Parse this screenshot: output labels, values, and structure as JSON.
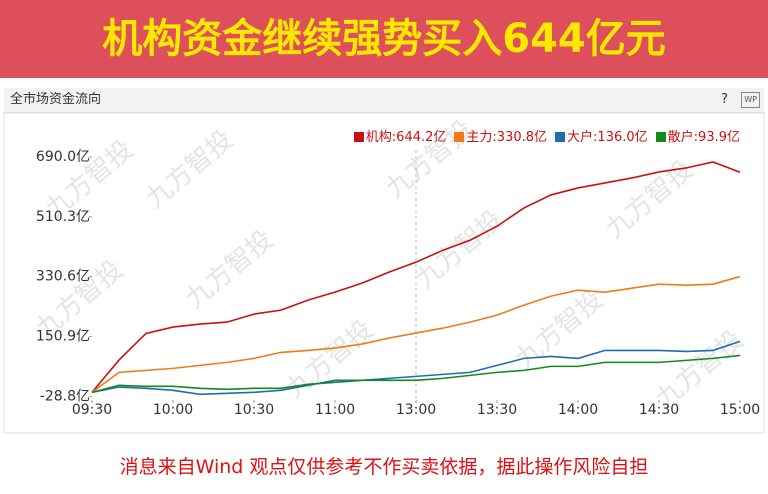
{
  "banner": {
    "title": "机构资金继续强势买入644亿元"
  },
  "panel": {
    "title": "全市场资金流向",
    "help": "?",
    "icon": "WP"
  },
  "watermark": "九方智投",
  "footer": "消息来自Wind 观点仅供参考不作买卖依据，据此操作风险自担",
  "chart_data": {
    "type": "line",
    "x": [
      0,
      10,
      20,
      30,
      40,
      50,
      60,
      70,
      80,
      90,
      100,
      110,
      120,
      130,
      140,
      150,
      160,
      170,
      180,
      190,
      200,
      210,
      220,
      230,
      240
    ],
    "xlim": [
      0,
      240
    ],
    "xticks": [
      {
        "value": 0,
        "label": "09:30"
      },
      {
        "value": 30,
        "label": "10:00"
      },
      {
        "value": 60,
        "label": "10:30"
      },
      {
        "value": 90,
        "label": "11:00"
      },
      {
        "value": 120,
        "label": "13:00"
      },
      {
        "value": 150,
        "label": "13:30"
      },
      {
        "value": 180,
        "label": "14:00"
      },
      {
        "value": 210,
        "label": "14:30"
      },
      {
        "value": 240,
        "label": "15:00"
      }
    ],
    "ylim": [
      -40,
      726
    ],
    "yticks": [
      {
        "value": 690,
        "label": "690.0亿"
      },
      {
        "value": 510.3,
        "label": "510.3亿"
      },
      {
        "value": 330.6,
        "label": "330.6亿"
      },
      {
        "value": 150.9,
        "label": "150.9亿"
      },
      {
        "value": -28.8,
        "label": "-28.8亿"
      }
    ],
    "xgrid_at": 120,
    "series": [
      {
        "name": "机构",
        "color": "#cc1010",
        "last_label": "644.2亿",
        "values": [
          -17,
          80,
          160,
          179,
          188,
          194,
          218,
          230,
          260,
          284,
          311,
          344,
          374,
          410,
          440,
          482,
          537,
          576,
          597,
          612,
          627,
          645,
          657,
          675,
          644.2
        ]
      },
      {
        "name": "主力",
        "color": "#f07a18",
        "last_label": "330.8亿",
        "values": [
          -17,
          43,
          49,
          55,
          64,
          73,
          85,
          103,
          109,
          116,
          128,
          146,
          161,
          176,
          194,
          215,
          245,
          272,
          290,
          284,
          296,
          308,
          305,
          308,
          330.8
        ]
      },
      {
        "name": "大户",
        "color": "#1f6db0",
        "last_label": "136.0亿",
        "values": [
          -17,
          -1,
          -5,
          -11,
          -23,
          -20,
          -17,
          -11,
          4,
          19,
          19,
          25,
          31,
          37,
          43,
          64,
          85,
          91,
          85,
          109,
          109,
          109,
          106,
          109,
          136.0
        ]
      },
      {
        "name": "散户",
        "color": "#128a1e",
        "last_label": "93.9亿",
        "values": [
          -17,
          4,
          1,
          1,
          -5,
          -8,
          -5,
          -5,
          7,
          13,
          19,
          19,
          19,
          25,
          34,
          43,
          49,
          61,
          61,
          73,
          73,
          73,
          79,
          85,
          93.9
        ]
      }
    ]
  }
}
